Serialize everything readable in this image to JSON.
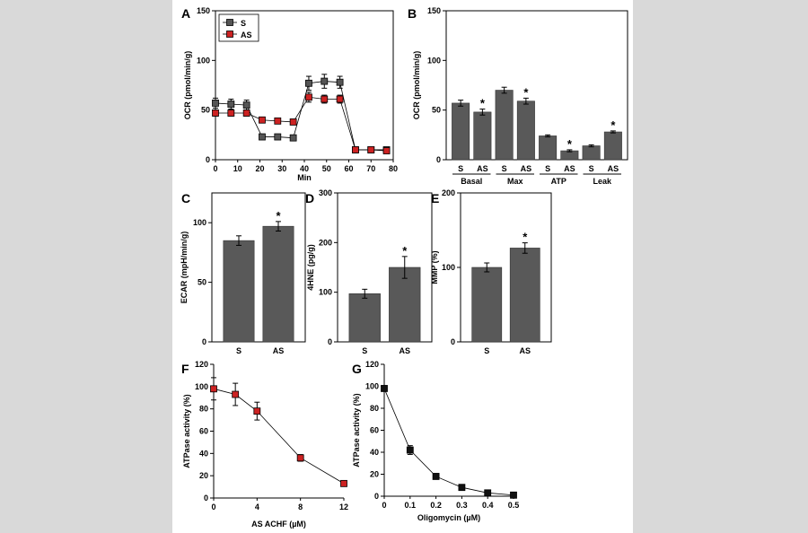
{
  "chart_data": [
    {
      "id": "A",
      "type": "line",
      "panel_letter": "A",
      "ylabel": "OCR (pmol/min/g)",
      "xlabel": "Min",
      "xlim": [
        0,
        80
      ],
      "ylim": [
        0,
        150
      ],
      "xticks": [
        0,
        10,
        20,
        30,
        40,
        50,
        60,
        70,
        80
      ],
      "yticks": [
        0,
        50,
        100,
        150
      ],
      "legend": "top-left",
      "series": [
        {
          "name": "S",
          "color": "#555555",
          "x": [
            0,
            7,
            14,
            21,
            28,
            35,
            42,
            49,
            56,
            63,
            70,
            77
          ],
          "y": [
            57,
            56,
            55,
            23,
            23,
            22,
            77,
            79,
            78,
            10,
            10,
            10
          ],
          "err": [
            5,
            5,
            5,
            2,
            2,
            2,
            7,
            7,
            6,
            2,
            2,
            2
          ]
        },
        {
          "name": "AS",
          "color": "#cc2222",
          "x": [
            0,
            7,
            14,
            21,
            28,
            35,
            42,
            49,
            56,
            63,
            70,
            77
          ],
          "y": [
            47,
            47,
            47,
            40,
            39,
            38,
            63,
            61,
            61,
            10,
            10,
            9
          ],
          "err": [
            3,
            3,
            3,
            2,
            2,
            2,
            5,
            4,
            4,
            1,
            1,
            1
          ]
        }
      ]
    },
    {
      "id": "B",
      "type": "bar",
      "panel_letter": "B",
      "ylabel": "OCR (pmol/min/g)",
      "ylim": [
        0,
        150
      ],
      "yticks": [
        0,
        50,
        100,
        150
      ],
      "categories": [
        "S",
        "AS",
        "S",
        "AS",
        "S",
        "AS",
        "S",
        "AS"
      ],
      "groups": [
        "Basal",
        "Max",
        "ATP",
        "Leak"
      ],
      "values": [
        57,
        48,
        70,
        59,
        24,
        9,
        14,
        28
      ],
      "err": [
        3,
        3,
        3,
        3,
        1,
        1,
        1,
        1
      ],
      "significant": [
        false,
        true,
        false,
        true,
        false,
        true,
        false,
        true
      ],
      "star": "*"
    },
    {
      "id": "C",
      "type": "bar",
      "panel_letter": "C",
      "ylabel": "ECAR (mpH/min/g)",
      "ylim": [
        0,
        125
      ],
      "yticks": [
        0,
        50,
        100
      ],
      "categories": [
        "S",
        "AS"
      ],
      "values": [
        85,
        97
      ],
      "err": [
        4,
        4
      ],
      "significant": [
        false,
        true
      ],
      "star": "*"
    },
    {
      "id": "D",
      "type": "bar",
      "panel_letter": "D",
      "ylabel": "4HNE (pg/g)",
      "ylim": [
        0,
        300
      ],
      "yticks": [
        0,
        100,
        200,
        300
      ],
      "categories": [
        "S",
        "AS"
      ],
      "values": [
        97,
        150
      ],
      "err": [
        9,
        22
      ],
      "significant": [
        false,
        true
      ],
      "star": "*"
    },
    {
      "id": "E",
      "type": "bar",
      "panel_letter": "E",
      "ylabel": "MMP (%)",
      "ylim": [
        0,
        200
      ],
      "yticks": [
        0,
        100,
        200
      ],
      "categories": [
        "S",
        "AS"
      ],
      "values": [
        100,
        126
      ],
      "err": [
        6,
        7
      ],
      "significant": [
        false,
        true
      ],
      "star": "*"
    },
    {
      "id": "F",
      "type": "line",
      "panel_letter": "F",
      "ylabel": "ATPase activity (%)",
      "xlabel": "AS ACHF (µM)",
      "xlim": [
        0,
        12
      ],
      "ylim": [
        0,
        120
      ],
      "xticks": [
        0,
        4,
        8,
        12
      ],
      "yticks": [
        0,
        20,
        40,
        60,
        80,
        100,
        120
      ],
      "series": [
        {
          "name": "",
          "color": "#cc2222",
          "x": [
            0,
            2,
            4,
            8,
            12
          ],
          "y": [
            98,
            93,
            78,
            36,
            13
          ],
          "err": [
            10,
            10,
            8,
            3,
            1
          ]
        }
      ]
    },
    {
      "id": "G",
      "type": "line",
      "panel_letter": "G",
      "ylabel": "ATPase activity (%)",
      "xlabel": "Oligomycin (µM)",
      "xlim": [
        0,
        0.5
      ],
      "ylim": [
        0,
        120
      ],
      "xticks": [
        0,
        0.1,
        0.2,
        0.3,
        0.4,
        0.5
      ],
      "yticks": [
        0,
        20,
        40,
        60,
        80,
        100,
        120
      ],
      "series": [
        {
          "name": "",
          "color": "#111111",
          "x": [
            0,
            0.1,
            0.2,
            0.3,
            0.4,
            0.5
          ],
          "y": [
            98,
            42,
            18,
            8,
            3,
            1
          ],
          "err": [
            2,
            4,
            1,
            1,
            1,
            0
          ]
        }
      ]
    }
  ]
}
